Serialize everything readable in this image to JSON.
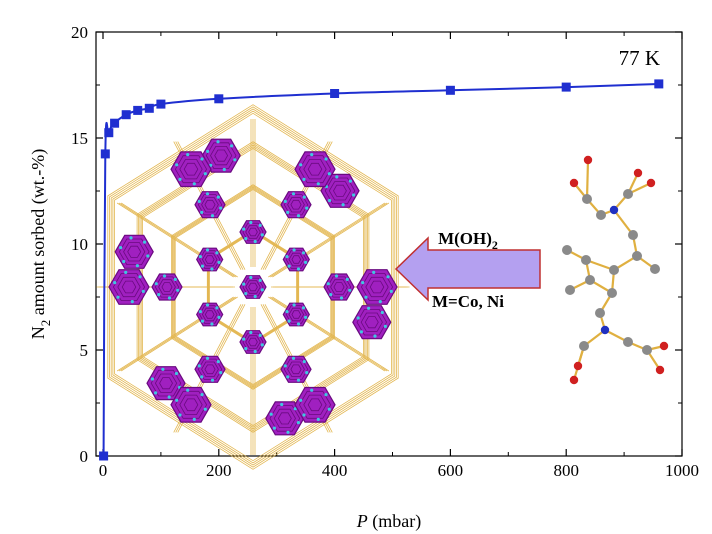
{
  "chart_data": {
    "type": "line",
    "title": "",
    "xlabel_var": "P",
    "xlabel_unit": " (mbar)",
    "ylabel_main": "N",
    "ylabel_sub": "2",
    "ylabel_rest": " amount sorbed (wt.-%)",
    "xlim": [
      0,
      1000
    ],
    "ylim": [
      0,
      20
    ],
    "xticks": [
      0,
      200,
      400,
      600,
      800,
      1000
    ],
    "yticks": [
      0,
      5,
      10,
      15,
      20
    ],
    "grid": false,
    "series": [
      {
        "color": "#1f2fd0",
        "marker": "square",
        "points": [
          {
            "x": 1,
            "y": 0.0
          },
          {
            "x": 4,
            "y": 14.25
          },
          {
            "x": 10,
            "y": 15.25
          },
          {
            "x": 20,
            "y": 15.7
          },
          {
            "x": 40,
            "y": 16.1
          },
          {
            "x": 60,
            "y": 16.3
          },
          {
            "x": 80,
            "y": 16.4
          },
          {
            "x": 100,
            "y": 16.6
          },
          {
            "x": 200,
            "y": 16.85
          },
          {
            "x": 400,
            "y": 17.1
          },
          {
            "x": 600,
            "y": 17.25
          },
          {
            "x": 800,
            "y": 17.4
          },
          {
            "x": 960,
            "y": 17.55
          }
        ]
      }
    ],
    "annotation": "77 K"
  },
  "inset": {
    "arrow_label_top_main": "M(OH)",
    "arrow_label_top_sub": "2",
    "arrow_label_bottom": "M=Co, Ni"
  },
  "colors": {
    "framework": "#a020c0",
    "framework_dark": "#6a0a80",
    "framework_atoms": "#40c8e0",
    "linker_bonds": "#e0b040",
    "arrow_fill": "#b4a0f0",
    "arrow_edge": "#c03030",
    "carbon": "#8a8a8a",
    "oxygen": "#d02020",
    "nitrogen": "#2030c0"
  }
}
